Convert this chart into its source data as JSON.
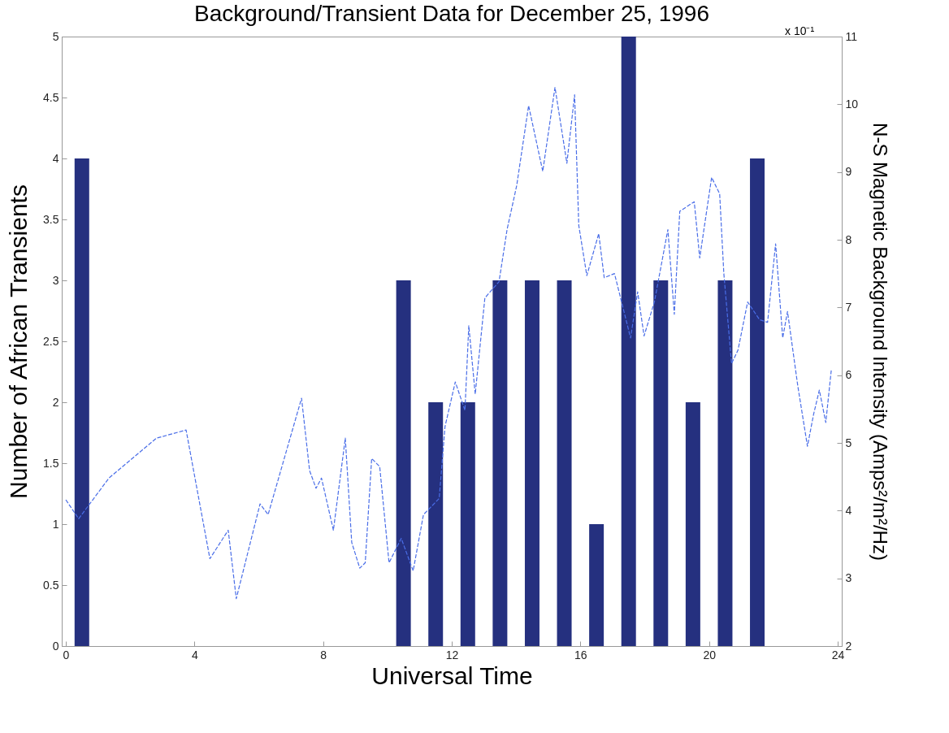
{
  "chart_data": {
    "type": "bar",
    "title": "Background/Transient Data for December 25, 1996",
    "xlabel": "Universal Time",
    "ylabel": "Number of African Transients",
    "y2label": "N-S Magnetic Background Intensity (Amps²/m²/Hz)",
    "annotations": [
      "x 10⁻¹"
    ],
    "xlim": [
      0,
      24
    ],
    "xticks": [
      0,
      4,
      8,
      12,
      16,
      20,
      24
    ],
    "ylim": [
      0,
      5
    ],
    "yticks": [
      0,
      0.5,
      1,
      1.5,
      2,
      2.5,
      3,
      3.5,
      4,
      4.5,
      5
    ],
    "y2lim": [
      2,
      11
    ],
    "y2ticks": [
      2,
      3,
      4,
      5,
      6,
      7,
      8,
      9,
      10,
      11
    ],
    "series": [
      {
        "color": "#25307f",
        "x": [
          0.5,
          10.5,
          11.5,
          12.5,
          13.5,
          14.5,
          15.5,
          16.5,
          17.5,
          18.5,
          19.5,
          20.5,
          21.5
        ],
        "values": [
          4,
          3,
          2,
          2,
          3,
          3,
          3,
          1,
          5,
          3,
          2,
          3,
          4
        ]
      },
      {
        "type": "line",
        "axis": "y2",
        "line_style": "dashed",
        "color": "#4a6ee8",
        "x": [
          0,
          0.4,
          1.34,
          2.82,
          3.74,
          4.48,
          5.05,
          5.3,
          6.04,
          6.29,
          7.33,
          7.58,
          7.78,
          7.95,
          8.32,
          8.69,
          8.89,
          9.14,
          9.31,
          9.51,
          9.76,
          10.05,
          10.43,
          10.8,
          11.12,
          11.61,
          11.79,
          12.11,
          12.41,
          12.53,
          12.73,
          13.03,
          13.47,
          13.72,
          14.02,
          14.39,
          14.83,
          15.21,
          15.58,
          15.82,
          15.95,
          16.2,
          16.57,
          16.74,
          17.06,
          17.56,
          17.78,
          17.98,
          18.3,
          18.72,
          18.92,
          19.09,
          19.54,
          19.71,
          20.08,
          20.33,
          20.46,
          20.7,
          20.9,
          21.2,
          21.57,
          21.82,
          22.07,
          22.29,
          22.44,
          22.76,
          23.06,
          23.25,
          23.43,
          23.63,
          23.8
        ],
        "values": [
          4.16,
          3.88,
          4.48,
          5.07,
          5.19,
          3.29,
          3.71,
          2.7,
          4.1,
          3.94,
          5.66,
          4.59,
          4.33,
          4.48,
          3.71,
          5.07,
          3.53,
          3.15,
          3.23,
          4.77,
          4.65,
          3.23,
          3.59,
          3.11,
          3.94,
          4.18,
          5.24,
          5.9,
          5.48,
          6.73,
          5.72,
          7.14,
          7.38,
          8.15,
          8.8,
          9.98,
          9.01,
          10.25,
          9.13,
          10.14,
          8.21,
          7.47,
          8.09,
          7.44,
          7.5,
          6.55,
          7.23,
          6.58,
          7.08,
          8.15,
          6.9,
          8.42,
          8.56,
          7.73,
          8.92,
          8.68,
          7.5,
          6.17,
          6.37,
          7.08,
          6.82,
          6.78,
          7.94,
          6.55,
          6.94,
          5.84,
          4.95,
          5.42,
          5.78,
          5.3,
          6.07
        ]
      }
    ]
  }
}
